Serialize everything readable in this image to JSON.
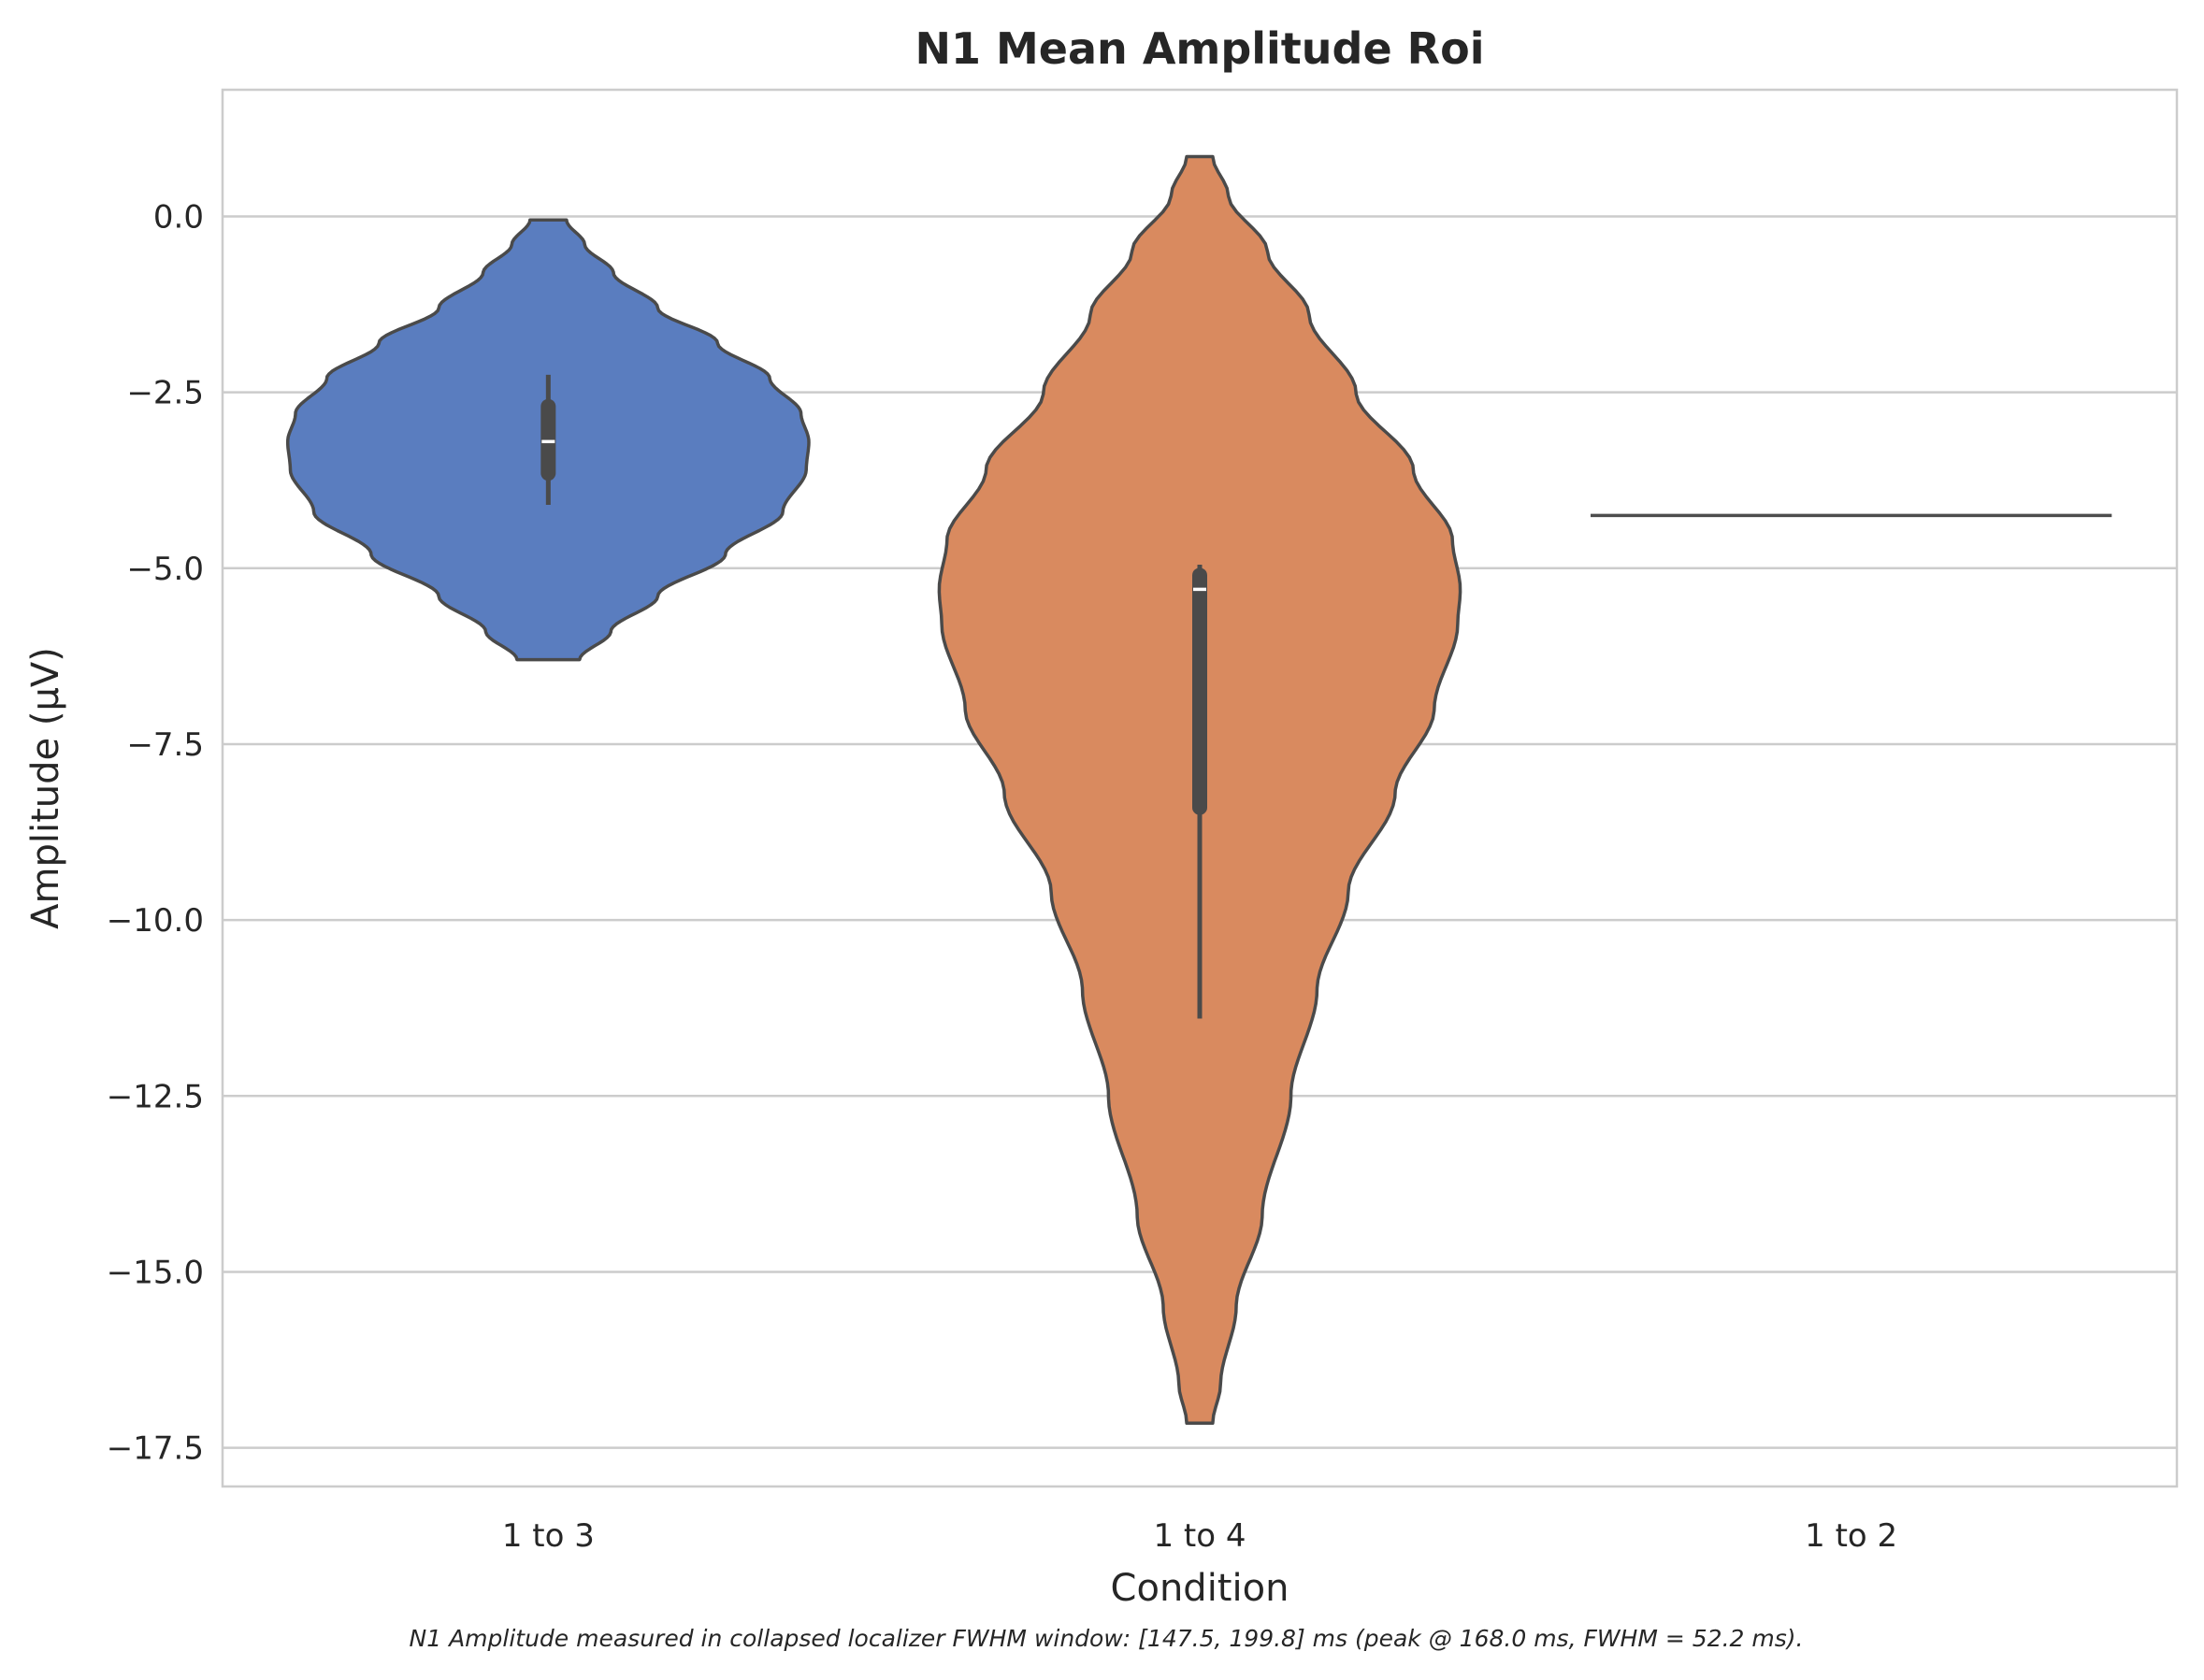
{
  "chart_data": {
    "type": "violin",
    "title": "N1 Mean Amplitude Roi",
    "xlabel": "Condition",
    "ylabel": "Amplitude (μV)",
    "ylim": [
      -18.05,
      1.8
    ],
    "yticks": [
      0.0,
      -2.5,
      -5.0,
      -7.5,
      -10.0,
      -12.5,
      -15.0,
      -17.5
    ],
    "ytick_labels": [
      "0.0",
      "−2.5",
      "−5.0",
      "−7.5",
      "−10.0",
      "−12.5",
      "−15.0",
      "−17.5"
    ],
    "categories": [
      "1 to 3",
      "1 to 4",
      "1 to 2"
    ],
    "grid": "horizontal",
    "violins": [
      {
        "category": "1 to 3",
        "color": "#5a7dbf",
        "min": -6.3,
        "max": -0.05,
        "median": -3.2,
        "q1": -3.65,
        "q3": -2.7,
        "whisker_low": -4.1,
        "whisker_high": -2.25,
        "profile": [
          [
            -6.3,
            0.12
          ],
          [
            -5.9,
            0.24
          ],
          [
            -5.4,
            0.42
          ],
          [
            -4.8,
            0.68
          ],
          [
            -4.2,
            0.9
          ],
          [
            -3.6,
            0.99
          ],
          [
            -3.2,
            1.0
          ],
          [
            -2.8,
            0.97
          ],
          [
            -2.3,
            0.85
          ],
          [
            -1.8,
            0.65
          ],
          [
            -1.3,
            0.42
          ],
          [
            -0.8,
            0.25
          ],
          [
            -0.4,
            0.14
          ],
          [
            -0.05,
            0.07
          ]
        ]
      },
      {
        "category": "1 to 4",
        "color": "#d98a5f",
        "min": -17.15,
        "max": 0.85,
        "median": -5.3,
        "q1": -8.4,
        "q3": -5.1,
        "whisker_low": -11.4,
        "whisker_high": -4.95,
        "profile": [
          [
            -17.15,
            0.05
          ],
          [
            -16.6,
            0.08
          ],
          [
            -15.5,
            0.14
          ],
          [
            -14.2,
            0.24
          ],
          [
            -12.5,
            0.35
          ],
          [
            -11.0,
            0.45
          ],
          [
            -9.6,
            0.57
          ],
          [
            -8.2,
            0.75
          ],
          [
            -7.0,
            0.9
          ],
          [
            -5.8,
            0.99
          ],
          [
            -5.3,
            1.0
          ],
          [
            -4.6,
            0.97
          ],
          [
            -3.6,
            0.82
          ],
          [
            -2.5,
            0.6
          ],
          [
            -1.4,
            0.42
          ],
          [
            -0.5,
            0.26
          ],
          [
            0.3,
            0.11
          ],
          [
            0.85,
            0.05
          ]
        ]
      },
      {
        "category": "1 to 2",
        "color": "#4d4d4d",
        "single_value": -4.25
      }
    ],
    "caption": "N1 Amplitude measured in collapsed localizer FWHM window: [147.5, 199.8] ms (peak @ 168.0 ms, FWHM = 52.2 ms)."
  }
}
